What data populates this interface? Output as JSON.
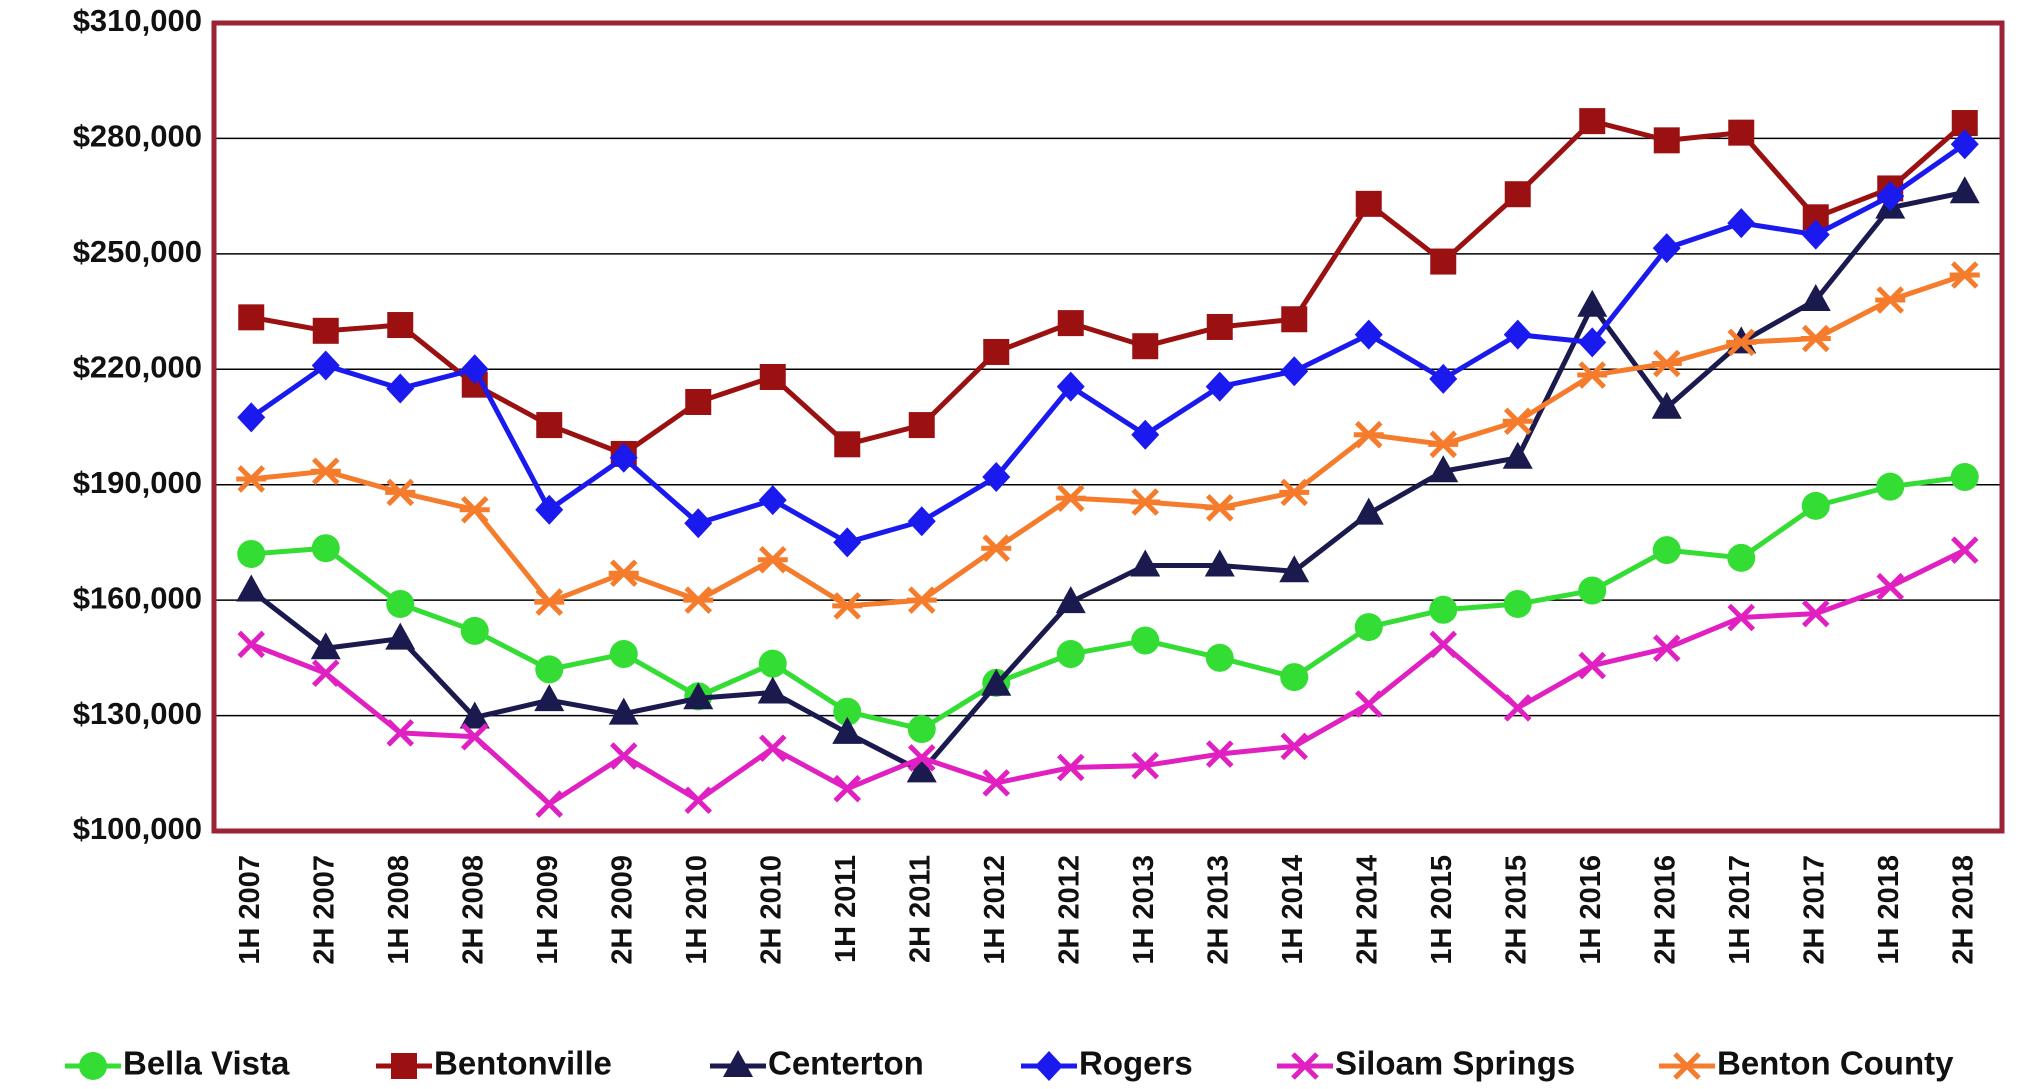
{
  "chart_data": {
    "type": "line",
    "categories": [
      "1H 2007",
      "2H 2007",
      "1H 2008",
      "2H 2008",
      "1H 2009",
      "2H 2009",
      "1H 2010",
      "2H 2010",
      "1H 2011",
      "2H 2011",
      "1H 2012",
      "2H 2012",
      "1H 2013",
      "2H 2013",
      "1H 2014",
      "2H 2014",
      "1H 2015",
      "2H 2015",
      "1H 2016",
      "2H 2016",
      "1H 2017",
      "2H 2017",
      "1H 2018",
      "2H 2018"
    ],
    "series": [
      {
        "name": "Bella Vista",
        "color": "#33dd33",
        "marker": "circle",
        "values": [
          172000,
          173500,
          159000,
          152000,
          142000,
          146000,
          135000,
          143500,
          131000,
          126500,
          138500,
          146000,
          149500,
          145000,
          140000,
          153000,
          157500,
          159000,
          162500,
          173000,
          171000,
          184500,
          189500,
          192000
        ]
      },
      {
        "name": "Bentonville",
        "color": "#9b1010",
        "marker": "square",
        "values": [
          233500,
          230000,
          231500,
          216000,
          205500,
          198000,
          211500,
          218000,
          200500,
          205500,
          224500,
          232000,
          226000,
          231000,
          233000,
          263000,
          248000,
          265500,
          284500,
          279500,
          281500,
          259500,
          267000,
          284000
        ]
      },
      {
        "name": "Centerton",
        "color": "#1a1a4e",
        "marker": "triangle",
        "values": [
          162500,
          147500,
          150000,
          129500,
          134000,
          130500,
          134500,
          136000,
          125500,
          115500,
          138000,
          159500,
          169000,
          169000,
          167500,
          182500,
          193500,
          197000,
          236500,
          210000,
          227000,
          238000,
          262000,
          266000
        ]
      },
      {
        "name": "Rogers",
        "color": "#1a1aee",
        "marker": "diamond",
        "values": [
          207500,
          221000,
          215000,
          220000,
          183500,
          197000,
          180000,
          186000,
          175000,
          180500,
          192000,
          215500,
          203000,
          215500,
          219500,
          229000,
          217500,
          229000,
          227000,
          251500,
          258000,
          255000,
          265000,
          278500
        ]
      },
      {
        "name": "Siloam Springs",
        "color": "#e020c0",
        "marker": "x",
        "values": [
          148500,
          141000,
          125500,
          124500,
          107000,
          119500,
          108000,
          121500,
          111000,
          119000,
          112500,
          116500,
          117000,
          120000,
          122000,
          133000,
          148500,
          132000,
          143000,
          147500,
          155500,
          156500,
          163500,
          173000
        ]
      },
      {
        "name": "Benton County",
        "color": "#f57c2c",
        "marker": "star",
        "values": [
          191500,
          193500,
          188000,
          183500,
          159500,
          167000,
          160000,
          170500,
          158500,
          160000,
          173500,
          186500,
          185500,
          184000,
          188000,
          203000,
          200500,
          206500,
          218500,
          221500,
          227000,
          228000,
          238000,
          244500
        ]
      }
    ],
    "ylim": [
      100000,
      310000
    ],
    "yticks": [
      {
        "value": 100000,
        "label": "$100,000"
      },
      {
        "value": 130000,
        "label": "$130,000"
      },
      {
        "value": 160000,
        "label": "$160,000"
      },
      {
        "value": 190000,
        "label": "$190,000"
      },
      {
        "value": 220000,
        "label": "$220,000"
      },
      {
        "value": 250000,
        "label": "$250,000"
      },
      {
        "value": 280000,
        "label": "$280,000"
      },
      {
        "value": 310000,
        "label": "$310,000"
      }
    ],
    "grid": true,
    "legend": "bottom"
  }
}
